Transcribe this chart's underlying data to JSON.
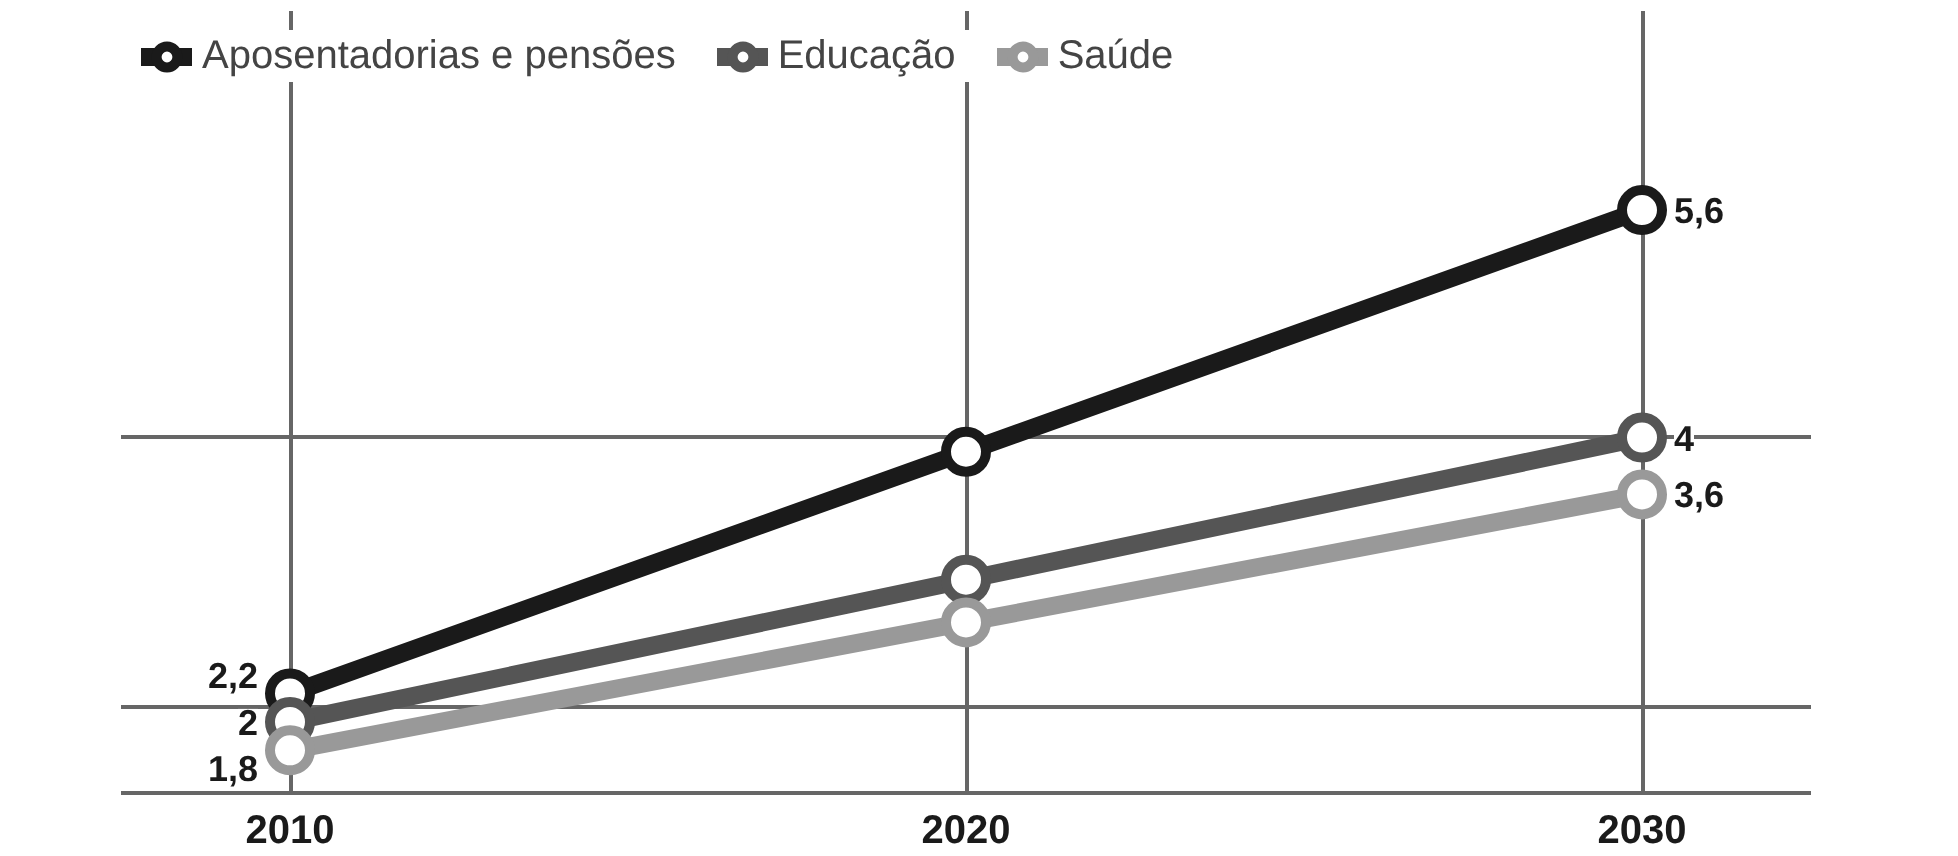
{
  "chart_data": {
    "type": "line",
    "x": [
      2010,
      2020,
      2030
    ],
    "xlim": [
      2007.5,
      2032.5
    ],
    "xticks": [
      2010,
      2020,
      2030
    ],
    "ylim": [
      1.5,
      7
    ],
    "yticks": [
      {
        "value": 2.1,
        "label": null
      },
      {
        "value": 4,
        "label": null
      }
    ],
    "tick_labels": "x",
    "series": [
      {
        "name": "Aposentadorias e pensões",
        "color": "#1a1a1a",
        "values": [
          2.2,
          3.9,
          5.6
        ],
        "value_labels": [
          "2,2",
          null,
          "5,6"
        ]
      },
      {
        "name": "Educação",
        "color": "#555555",
        "values": [
          2,
          3.0,
          4
        ],
        "value_labels": [
          "2",
          null,
          "4"
        ]
      },
      {
        "name": "Saúde",
        "color": "#999999",
        "values": [
          1.8,
          2.7,
          3.6
        ],
        "value_labels": [
          "1,8",
          null,
          "3,6"
        ]
      }
    ],
    "grid": true,
    "legend": "top",
    "marker": "circle",
    "line_style": "solid"
  }
}
